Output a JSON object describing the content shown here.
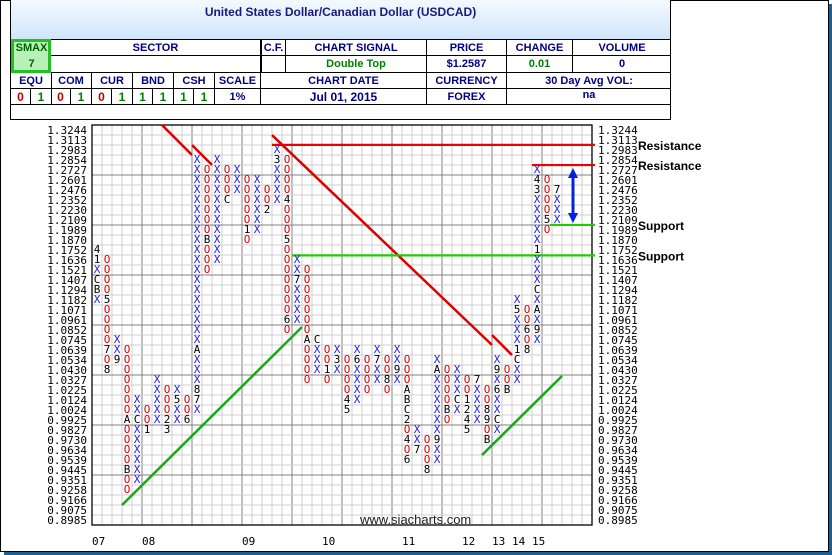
{
  "header": {
    "title": "United States Dollar/Canadian Dollar (USDCAD)",
    "smax_label": "SMAX",
    "smax_value": "7",
    "sector_label": "SECTOR",
    "sector_value": "",
    "cf_label": "C.F.",
    "cf_value": "",
    "signal_label": "CHART SIGNAL",
    "signal_value": "Double Top",
    "price_label": "PRICE",
    "price_value": "$1.2587",
    "change_label": "CHANGE",
    "change_value": "0.01",
    "volume_label": "VOLUME",
    "volume_value": "0",
    "asset_classes": [
      {
        "label": "EQU",
        "values": [
          "0",
          "1"
        ]
      },
      {
        "label": "COM",
        "values": [
          "0",
          "1"
        ]
      },
      {
        "label": "CUR",
        "values": [
          "0",
          "1"
        ]
      },
      {
        "label": "BND",
        "values": [
          "1",
          "1"
        ]
      },
      {
        "label": "CSH",
        "values": [
          "1",
          "1"
        ]
      }
    ],
    "scale_label": "SCALE",
    "scale_value": "1%",
    "date_label": "CHART DATE",
    "date_value": "Jul 01, 2015",
    "currency_label": "CURRENCY",
    "currency_value": "FOREX",
    "avgvol_label": "30 Day Avg VOL:",
    "avgvol_value": "na"
  },
  "colors": {
    "x_mark": "#1a1aff",
    "o_mark": "#e00000",
    "resistance": "#ee0000",
    "support": "#22cc00",
    "uptrend": "#18a818",
    "downtrend": "#dd0000",
    "arrow": "#0022dd",
    "zero": "#c00000",
    "one": "#008000"
  },
  "chart_data": {
    "type": "point-and-figure",
    "price_scale": [
      "1.3244",
      "1.3113",
      "1.2983",
      "1.2854",
      "1.2727",
      "1.2601",
      "1.2476",
      "1.2352",
      "1.2230",
      "1.2109",
      "1.1989",
      "1.1870",
      "1.1752",
      "1.1636",
      "1.1521",
      "1.1407",
      "1.1294",
      "1.1182",
      "1.1071",
      "1.0961",
      "1.0852",
      "1.0745",
      "1.0639",
      "1.0534",
      "1.0430",
      "1.0327",
      "1.0225",
      "1.0124",
      "1.0024",
      "0.9925",
      "0.9827",
      "0.9730",
      "0.9634",
      "0.9539",
      "0.9445",
      "0.9351",
      "0.9258",
      "0.9166",
      "0.9075",
      "0.8985"
    ],
    "columns": [
      {
        "type": "X",
        "top": "1.1752",
        "cells": "41XCBX"
      },
      {
        "type": "O",
        "top": "1.1636",
        "cells": "OOOO5OOOO7O8"
      },
      {
        "type": "X",
        "top": "1.0745",
        "cells": "XX9"
      },
      {
        "type": "O",
        "top": "1.0639",
        "cells": "OOOOOOOAOOOOBOO"
      },
      {
        "type": "X",
        "top": "1.0124",
        "cells": "XXCXXXXXX"
      },
      {
        "type": "O",
        "top": "1.0024",
        "cells": "OO1"
      },
      {
        "type": "X",
        "top": "1.0327",
        "cells": "XXXXX"
      },
      {
        "type": "O",
        "top": "1.0225",
        "cells": "OOO23"
      },
      {
        "type": "X",
        "top": "1.0225",
        "cells": "X5XX"
      },
      {
        "type": "O",
        "top": "1.0124",
        "cells": "OO6"
      },
      {
        "type": "X",
        "top": "1.2854",
        "cells": "XXXXXXXXXXXXXXXXXXXAXXX87X"
      },
      {
        "type": "O",
        "top": "1.2727",
        "cells": "OOOOOOOBOOO"
      },
      {
        "type": "X",
        "top": "1.2854",
        "cells": "XXXXXXXXXXX"
      },
      {
        "type": "O",
        "top": "1.2727",
        "cells": "OOOC"
      },
      {
        "type": "X",
        "top": "1.2727",
        "cells": "XXX"
      },
      {
        "type": "O",
        "top": "1.2601",
        "cells": "OOOOO1O"
      },
      {
        "type": "X",
        "top": "1.2601",
        "cells": "XXXXXX"
      },
      {
        "type": "O",
        "top": "1.2476",
        "cells": "OO2"
      },
      {
        "type": "X",
        "top": "1.2983",
        "cells": "X3XXXX"
      },
      {
        "type": "O",
        "top": "1.2854",
        "cells": "OOOO4OOO5OOOOOOO6O"
      },
      {
        "type": "X",
        "top": "1.1636",
        "cells": "XX7XXXX"
      },
      {
        "type": "O",
        "top": "1.1521",
        "cells": "OOOOOOOAOOOO"
      },
      {
        "type": "X",
        "top": "1.0745",
        "cells": "CXXX"
      },
      {
        "type": "O",
        "top": "1.0639",
        "cells": "OO1O"
      },
      {
        "type": "X",
        "top": "1.0639",
        "cells": "X3X"
      },
      {
        "type": "O",
        "top": "1.0534",
        "cells": "OOOO45"
      },
      {
        "type": "X",
        "top": "1.0639",
        "cells": "X6XXXX"
      },
      {
        "type": "O",
        "top": "1.0534",
        "cells": "OOOO"
      },
      {
        "type": "X",
        "top": "1.0639",
        "cells": "X7XX"
      },
      {
        "type": "O",
        "top": "1.0534",
        "cells": "OO8O"
      },
      {
        "type": "X",
        "top": "1.0639",
        "cells": "XX9X"
      },
      {
        "type": "O",
        "top": "1.0534",
        "cells": "OOOABC2O4O6"
      },
      {
        "type": "X",
        "top": "0.9827",
        "cells": "XX7"
      },
      {
        "type": "O",
        "top": "0.9730",
        "cells": "OOO8"
      },
      {
        "type": "X",
        "top": "1.0534",
        "cells": "XAXXXXXX9XX"
      },
      {
        "type": "O",
        "top": "1.0430",
        "cells": "OOOOBO"
      },
      {
        "type": "X",
        "top": "1.0430",
        "cells": "XXXCX"
      },
      {
        "type": "O",
        "top": "1.0327",
        "cells": "OO1245"
      },
      {
        "type": "X",
        "top": "1.0327",
        "cells": "7XXXX"
      },
      {
        "type": "O",
        "top": "1.0225",
        "cells": "OO89OB"
      },
      {
        "type": "X",
        "top": "1.0534",
        "cells": "X9X6XXCX"
      },
      {
        "type": "O",
        "top": "1.0430",
        "cells": "OOB"
      },
      {
        "type": "X",
        "top": "1.1182",
        "cells": "X5XXX1CXX"
      },
      {
        "type": "O",
        "top": "1.1071",
        "cells": "OO6O8"
      },
      {
        "type": "X",
        "top": "1.2727",
        "cells": "X43XXXXX1XXXCXAX9X"
      },
      {
        "type": "O",
        "top": "1.2601",
        "cells": "OOOO5O"
      },
      {
        "type": "X",
        "top": "1.2476",
        "cells": "7XXX"
      }
    ],
    "x_tick_labels": [
      {
        "label": "07",
        "col": 0
      },
      {
        "label": "08",
        "col": 5
      },
      {
        "label": "09",
        "col": 15
      },
      {
        "label": "10",
        "col": 23
      },
      {
        "label": "11",
        "col": 31
      },
      {
        "label": "12",
        "col": 37
      },
      {
        "label": "13",
        "col": 40
      },
      {
        "label": "14",
        "col": 42
      },
      {
        "label": "15",
        "col": 44
      }
    ],
    "horizontal_lines": [
      {
        "kind": "resistance",
        "label": "Resistance",
        "price": 1.305,
        "from_col": 18
      },
      {
        "kind": "resistance",
        "label": "Resistance",
        "price": 1.279,
        "from_col": 44
      },
      {
        "kind": "support",
        "label": "Support",
        "price": 1.205,
        "from_col": 45.8
      },
      {
        "kind": "support",
        "label": "Support",
        "price": 1.169,
        "from_col": 20
      }
    ],
    "trend_lines": [
      {
        "kind": "downtrend",
        "from": {
          "col": 7,
          "price": 1.331
        },
        "to": {
          "col": 10,
          "price": 1.2918
        }
      },
      {
        "kind": "downtrend",
        "from": {
          "col": 10,
          "price": 1.3048
        },
        "to": {
          "col": 12,
          "price": 1.279
        }
      },
      {
        "kind": "downtrend",
        "from": {
          "col": 18,
          "price": 1.3178
        },
        "to": {
          "col": 40,
          "price": 1.0692
        }
      },
      {
        "kind": "downtrend",
        "from": {
          "col": 40,
          "price": 1.0798
        },
        "to": {
          "col": 42,
          "price": 1.0586
        }
      },
      {
        "kind": "uptrend",
        "from": {
          "col": 3,
          "price": 0.912
        },
        "to": {
          "col": 21,
          "price": 1.0885
        }
      },
      {
        "kind": "uptrend",
        "from": {
          "col": 39,
          "price": 0.9586
        },
        "to": {
          "col": 47,
          "price": 1.0368
        }
      }
    ],
    "range_arrow": {
      "col": 48.1,
      "from_price": 1.2752,
      "to_price": 1.2073
    },
    "watermark_url": "www.siacharts.com",
    "grid": true
  }
}
